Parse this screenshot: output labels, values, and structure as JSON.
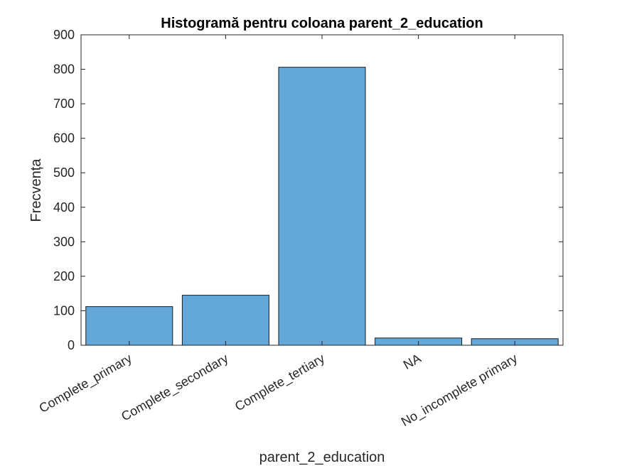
{
  "chart_data": {
    "type": "bar",
    "title": "Histogramă pentru coloana parent_2_education",
    "xlabel": "parent_2_education",
    "ylabel": "Frecvența",
    "categories": [
      "Complete_primary",
      "Complete_secondary",
      "Complete_tertiary",
      "NA",
      "No_incomplete primary"
    ],
    "values": [
      112,
      145,
      806,
      21,
      19
    ],
    "ylim": [
      0,
      900
    ],
    "yticks": [
      "0",
      "100",
      "200",
      "300",
      "400",
      "500",
      "600",
      "700",
      "800",
      "900"
    ],
    "grid": false,
    "bar_color": "#62a8d8"
  }
}
